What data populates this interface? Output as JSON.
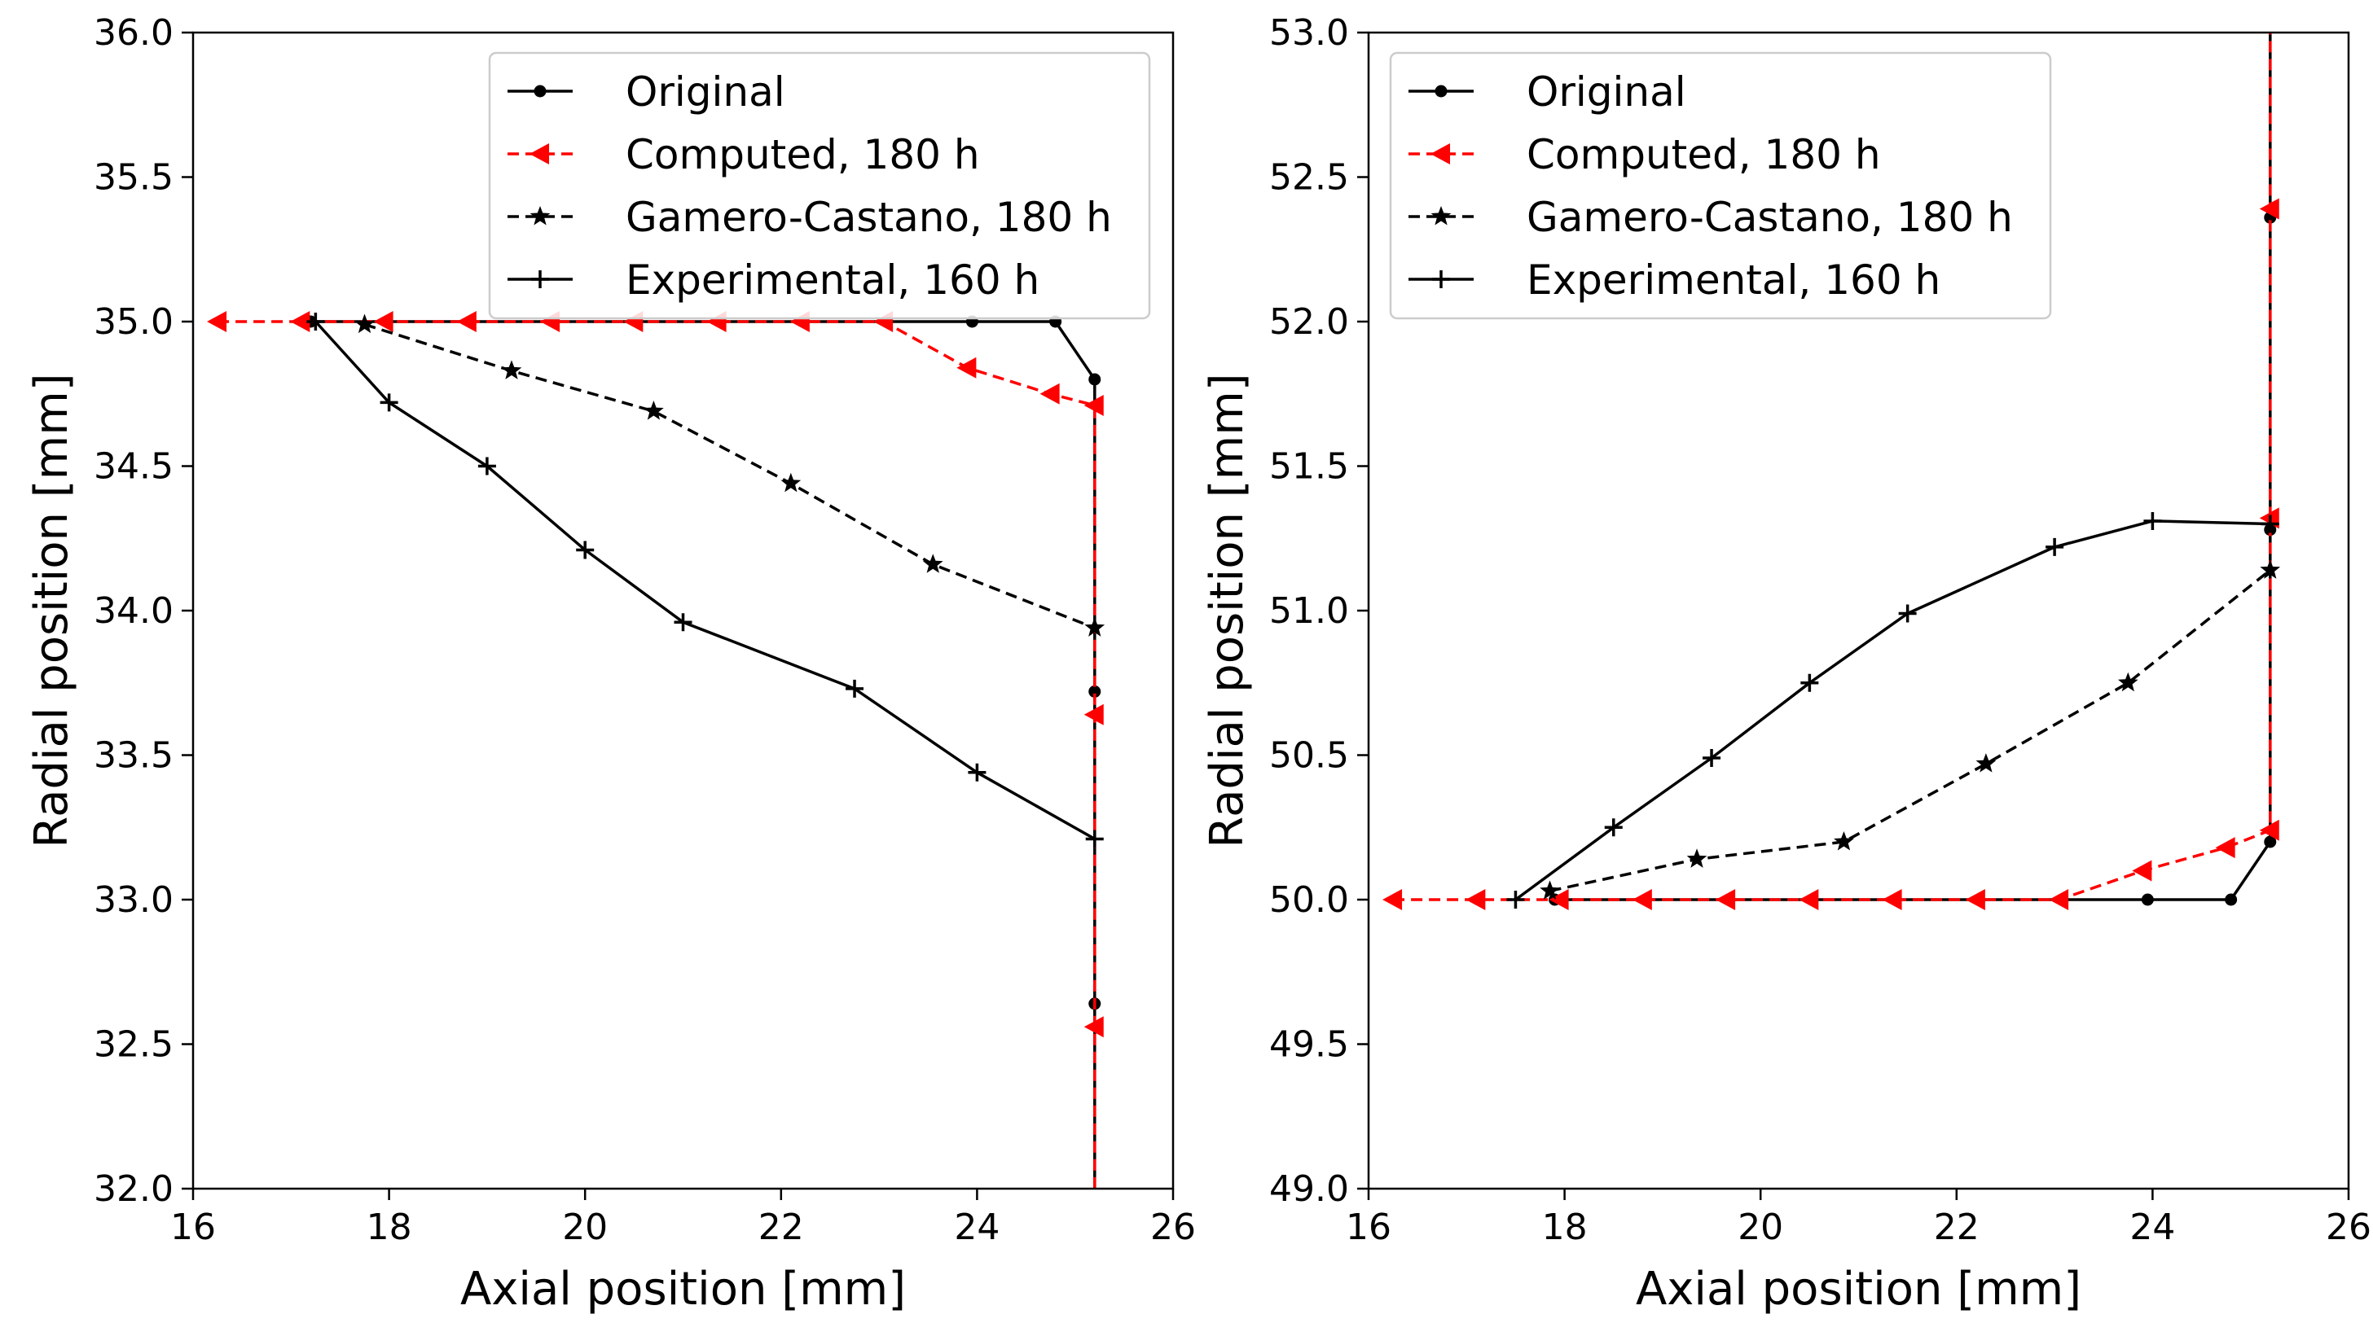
{
  "chart_data": [
    {
      "type": "line",
      "xlabel": "Axial position [mm]",
      "ylabel": "Radial position [mm]",
      "xlim": [
        16,
        26
      ],
      "ylim": [
        32.0,
        36.0
      ],
      "xticks": [
        "16",
        "18",
        "20",
        "22",
        "24",
        "26"
      ],
      "yticks": [
        "32.0",
        "32.5",
        "33.0",
        "33.5",
        "34.0",
        "34.5",
        "35.0",
        "35.5",
        "36.0"
      ],
      "grid": false,
      "legend_position": "top-right",
      "series": [
        {
          "name": "Original",
          "color": "#000000",
          "dash": "solid",
          "marker": "dot",
          "points": [
            [
              17.2,
              35.0
            ],
            [
              23.95,
              35.0
            ],
            [
              24.8,
              35.0
            ],
            [
              25.2,
              34.8
            ],
            [
              25.2,
              33.72
            ],
            [
              25.2,
              32.64
            ],
            [
              25.2,
              32.0
            ]
          ]
        },
        {
          "name": "Computed, 180 h",
          "color": "#ff0000",
          "dash": "dashed",
          "marker": "triangle-left",
          "points": [
            [
              16.25,
              35.0
            ],
            [
              17.1,
              35.0
            ],
            [
              17.95,
              35.0
            ],
            [
              18.8,
              35.0
            ],
            [
              19.65,
              35.0
            ],
            [
              20.5,
              35.0
            ],
            [
              21.35,
              35.0
            ],
            [
              22.2,
              35.0
            ],
            [
              23.05,
              35.0
            ],
            [
              23.9,
              34.84
            ],
            [
              24.75,
              34.75
            ],
            [
              25.2,
              34.71
            ],
            [
              25.2,
              33.64
            ],
            [
              25.2,
              32.56
            ],
            [
              25.2,
              32.0
            ]
          ]
        },
        {
          "name": "Gamero-Castano, 180 h",
          "color": "#000000",
          "dash": "dashed",
          "marker": "star",
          "points": [
            [
              17.75,
              34.99
            ],
            [
              19.25,
              34.83
            ],
            [
              20.7,
              34.69
            ],
            [
              22.1,
              34.44
            ],
            [
              23.55,
              34.16
            ],
            [
              25.2,
              33.94
            ]
          ]
        },
        {
          "name": "Experimental, 160 h",
          "color": "#000000",
          "dash": "solid",
          "marker": "plus",
          "points": [
            [
              17.25,
              35.0
            ],
            [
              18.0,
              34.72
            ],
            [
              19.0,
              34.5
            ],
            [
              20.0,
              34.21
            ],
            [
              21.0,
              33.96
            ],
            [
              22.75,
              33.73
            ],
            [
              24.0,
              33.44
            ],
            [
              25.2,
              33.21
            ]
          ]
        }
      ]
    },
    {
      "type": "line",
      "xlabel": "Axial position [mm]",
      "ylabel": "Radial position [mm]",
      "xlim": [
        16,
        26
      ],
      "ylim": [
        49.0,
        53.0
      ],
      "xticks": [
        "16",
        "18",
        "20",
        "22",
        "24",
        "26"
      ],
      "yticks": [
        "49.0",
        "49.5",
        "50.0",
        "50.5",
        "51.0",
        "51.5",
        "52.0",
        "52.5",
        "53.0"
      ],
      "grid": false,
      "legend_position": "top-left",
      "series": [
        {
          "name": "Original",
          "color": "#000000",
          "dash": "solid",
          "marker": "dot",
          "points": [
            [
              17.9,
              50.0
            ],
            [
              23.95,
              50.0
            ],
            [
              24.8,
              50.0
            ],
            [
              25.2,
              50.2
            ],
            [
              25.2,
              51.28
            ],
            [
              25.2,
              52.36
            ],
            [
              25.2,
              53.0
            ]
          ]
        },
        {
          "name": "Computed, 180 h",
          "color": "#ff0000",
          "dash": "dashed",
          "marker": "triangle-left",
          "points": [
            [
              16.25,
              50.0
            ],
            [
              17.1,
              50.0
            ],
            [
              17.95,
              50.0
            ],
            [
              18.8,
              50.0
            ],
            [
              19.65,
              50.0
            ],
            [
              20.5,
              50.0
            ],
            [
              21.35,
              50.0
            ],
            [
              22.2,
              50.0
            ],
            [
              23.05,
              50.0
            ],
            [
              23.9,
              50.1
            ],
            [
              24.75,
              50.18
            ],
            [
              25.2,
              50.24
            ],
            [
              25.2,
              51.32
            ],
            [
              25.2,
              52.39
            ],
            [
              25.2,
              53.0
            ]
          ]
        },
        {
          "name": "Gamero-Castano, 180 h",
          "color": "#000000",
          "dash": "dashed",
          "marker": "star",
          "points": [
            [
              17.85,
              50.03
            ],
            [
              19.35,
              50.14
            ],
            [
              20.85,
              50.2
            ],
            [
              22.3,
              50.47
            ],
            [
              23.75,
              50.75
            ],
            [
              25.2,
              51.14
            ]
          ]
        },
        {
          "name": "Experimental, 160 h",
          "color": "#000000",
          "dash": "solid",
          "marker": "plus",
          "points": [
            [
              17.5,
              50.0
            ],
            [
              18.5,
              50.25
            ],
            [
              19.5,
              50.49
            ],
            [
              20.5,
              50.75
            ],
            [
              21.5,
              50.99
            ],
            [
              23.0,
              51.22
            ],
            [
              24.0,
              51.31
            ],
            [
              25.2,
              51.3
            ]
          ]
        }
      ]
    }
  ]
}
